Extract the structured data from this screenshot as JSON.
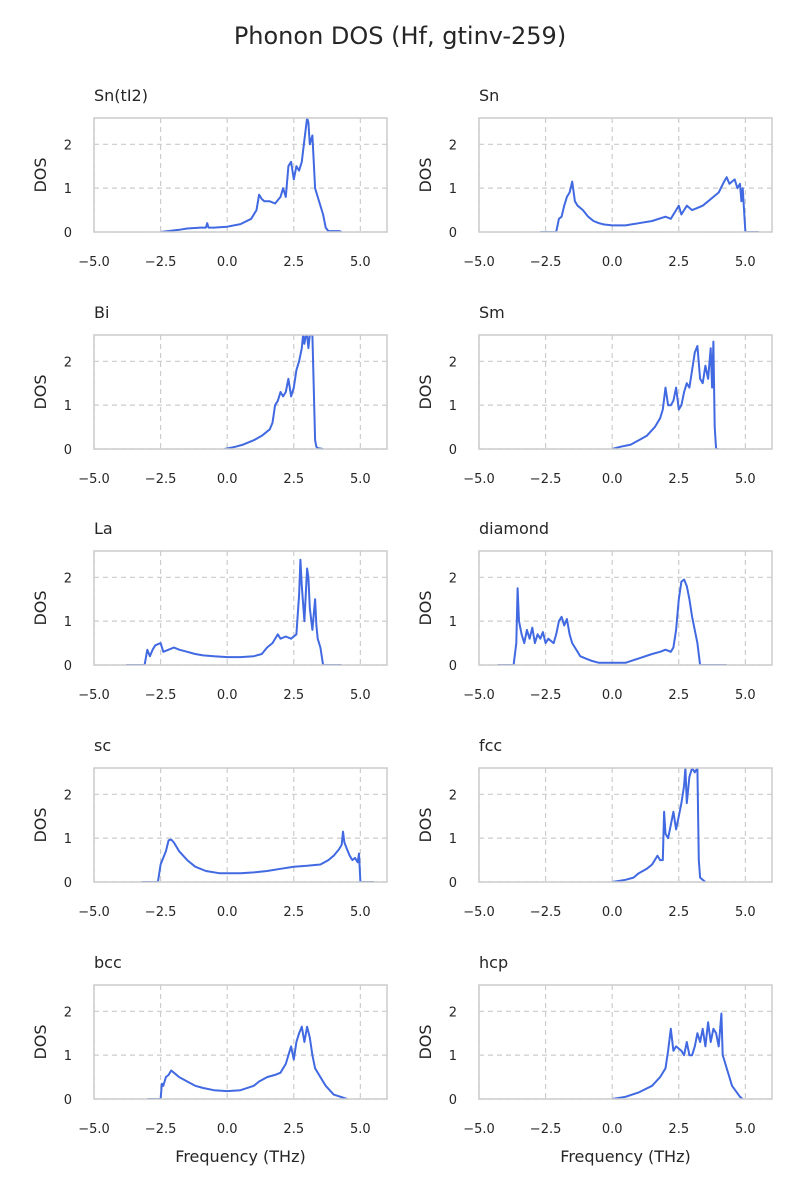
{
  "figure": {
    "title": "Phonon DOS (Hf, gtinv-259)"
  },
  "chart_data": [
    {
      "type": "line",
      "title": "Sn(tI2)",
      "xlabel": "",
      "ylabel": "DOS",
      "xlim": [
        -5,
        6
      ],
      "ylim": [
        0,
        2.6
      ],
      "xticks": [
        "−5.0",
        "−2.5",
        "0.0",
        "2.5",
        "5.0"
      ],
      "yticks": [
        "0",
        "1",
        "2"
      ],
      "grid": true,
      "series": [
        {
          "x": [
            -2.5,
            -1.8,
            -1.5,
            -1.0,
            -0.8,
            -0.75,
            -0.7,
            -0.5,
            0,
            0.5,
            0.9,
            1.1,
            1.2,
            1.3,
            1.4,
            1.6,
            1.8,
            2.0,
            2.1,
            2.2,
            2.3,
            2.4,
            2.5,
            2.6,
            2.7,
            2.8,
            2.9,
            3.0,
            3.05,
            3.1,
            3.2,
            3.3,
            3.4,
            3.5,
            3.6,
            3.7,
            3.8,
            4.2,
            4.3
          ],
          "y": [
            0,
            0.05,
            0.08,
            0.1,
            0.1,
            0.2,
            0.1,
            0.1,
            0.12,
            0.18,
            0.3,
            0.5,
            0.85,
            0.75,
            0.7,
            0.7,
            0.65,
            0.8,
            1.0,
            0.8,
            1.5,
            1.6,
            1.2,
            1.5,
            1.4,
            1.6,
            2.1,
            2.6,
            2.5,
            2.0,
            2.2,
            1.0,
            0.8,
            0.6,
            0.4,
            0.1,
            0.02,
            0.02,
            0
          ]
        }
      ]
    },
    {
      "type": "line",
      "title": "Sn",
      "xlabel": "",
      "ylabel": "DOS",
      "xlim": [
        -5,
        6
      ],
      "ylim": [
        0,
        2.6
      ],
      "xticks": [
        "−5.0",
        "−2.5",
        "0.0",
        "2.5",
        "5.0"
      ],
      "yticks": [
        "0",
        "1",
        "2"
      ],
      "grid": true,
      "series": [
        {
          "x": [
            -2.7,
            -2.1,
            -2.0,
            -1.9,
            -1.8,
            -1.7,
            -1.6,
            -1.5,
            -1.4,
            -1.3,
            -1.1,
            -0.9,
            -0.7,
            -0.5,
            -0.3,
            0,
            0.5,
            1.0,
            1.5,
            2.0,
            2.2,
            2.4,
            2.5,
            2.6,
            2.7,
            2.8,
            3.0,
            3.2,
            3.4,
            3.6,
            3.8,
            4.0,
            4.2,
            4.3,
            4.4,
            4.5,
            4.6,
            4.7,
            4.8,
            4.85,
            4.9,
            5.0,
            5.5
          ],
          "y": [
            0,
            0,
            0.3,
            0.35,
            0.6,
            0.8,
            0.9,
            1.15,
            0.7,
            0.6,
            0.5,
            0.35,
            0.25,
            0.2,
            0.17,
            0.15,
            0.15,
            0.2,
            0.25,
            0.35,
            0.3,
            0.5,
            0.6,
            0.4,
            0.5,
            0.6,
            0.5,
            0.55,
            0.6,
            0.7,
            0.8,
            0.9,
            1.15,
            1.25,
            1.1,
            1.15,
            1.2,
            1.0,
            1.1,
            0.7,
            1.0,
            0,
            0
          ]
        }
      ]
    },
    {
      "type": "line",
      "title": "Bi",
      "xlabel": "",
      "ylabel": "DOS",
      "xlim": [
        -5,
        6
      ],
      "ylim": [
        0,
        2.6
      ],
      "xticks": [
        "−5.0",
        "−2.5",
        "0.0",
        "2.5",
        "5.0"
      ],
      "yticks": [
        "0",
        "1",
        "2"
      ],
      "grid": true,
      "series": [
        {
          "x": [
            -0.1,
            0.3,
            0.6,
            1.0,
            1.3,
            1.6,
            1.7,
            1.8,
            1.9,
            2.0,
            2.1,
            2.2,
            2.3,
            2.4,
            2.5,
            2.6,
            2.7,
            2.8,
            2.85,
            2.9,
            2.95,
            3.0,
            3.05,
            3.1,
            3.2,
            3.3,
            3.35,
            3.4,
            3.6
          ],
          "y": [
            0,
            0.05,
            0.1,
            0.2,
            0.3,
            0.45,
            0.6,
            1.0,
            1.1,
            1.3,
            1.2,
            1.3,
            1.6,
            1.2,
            1.4,
            1.8,
            2.0,
            2.3,
            2.6,
            2.4,
            2.6,
            2.6,
            2.3,
            2.6,
            2.6,
            0.2,
            0.05,
            0.02,
            0
          ]
        }
      ]
    },
    {
      "type": "line",
      "title": "Sm",
      "xlabel": "",
      "ylabel": "DOS",
      "xlim": [
        -5,
        6
      ],
      "ylim": [
        0,
        2.6
      ],
      "xticks": [
        "−5.0",
        "−2.5",
        "0.0",
        "2.5",
        "5.0"
      ],
      "yticks": [
        "0",
        "1",
        "2"
      ],
      "grid": true,
      "series": [
        {
          "x": [
            0,
            0.3,
            0.7,
            1.0,
            1.3,
            1.6,
            1.8,
            1.9,
            2.0,
            2.1,
            2.2,
            2.3,
            2.4,
            2.5,
            2.6,
            2.7,
            2.8,
            2.9,
            3.0,
            3.1,
            3.2,
            3.3,
            3.4,
            3.5,
            3.6,
            3.7,
            3.75,
            3.8,
            3.85,
            3.9,
            4.0
          ],
          "y": [
            0,
            0.05,
            0.1,
            0.2,
            0.3,
            0.5,
            0.7,
            0.9,
            1.4,
            1.0,
            1.0,
            1.1,
            1.4,
            0.9,
            1.0,
            1.3,
            1.5,
            1.4,
            1.8,
            2.2,
            2.35,
            1.6,
            1.5,
            1.9,
            1.6,
            2.3,
            1.4,
            2.45,
            0.5,
            0,
            0
          ]
        }
      ]
    },
    {
      "type": "line",
      "title": "La",
      "xlabel": "",
      "ylabel": "DOS",
      "xlim": [
        -5,
        6
      ],
      "ylim": [
        0,
        2.6
      ],
      "xticks": [
        "−5.0",
        "−2.5",
        "0.0",
        "2.5",
        "5.0"
      ],
      "yticks": [
        "0",
        "1",
        "2"
      ],
      "grid": true,
      "series": [
        {
          "x": [
            -3.8,
            -3.1,
            -3.0,
            -2.9,
            -2.8,
            -2.7,
            -2.5,
            -2.4,
            -2.2,
            -2.0,
            -1.8,
            -1.5,
            -1.2,
            -0.9,
            -0.5,
            0,
            0.5,
            1.0,
            1.3,
            1.5,
            1.7,
            1.9,
            2.0,
            2.2,
            2.4,
            2.6,
            2.7,
            2.75,
            2.8,
            2.9,
            3.0,
            3.05,
            3.1,
            3.2,
            3.3,
            3.35,
            3.4,
            3.5,
            3.6,
            4.3
          ],
          "y": [
            0,
            0,
            0.35,
            0.2,
            0.35,
            0.45,
            0.5,
            0.3,
            0.35,
            0.4,
            0.35,
            0.3,
            0.25,
            0.22,
            0.2,
            0.18,
            0.18,
            0.2,
            0.25,
            0.4,
            0.5,
            0.7,
            0.6,
            0.65,
            0.6,
            0.7,
            1.6,
            2.4,
            1.8,
            1.0,
            2.2,
            2.0,
            1.3,
            0.8,
            1.5,
            0.9,
            0.6,
            0.4,
            0,
            0
          ]
        }
      ]
    },
    {
      "type": "line",
      "title": "diamond",
      "xlabel": "",
      "ylabel": "DOS",
      "xlim": [
        -5,
        6
      ],
      "ylim": [
        0,
        2.6
      ],
      "xticks": [
        "−5.0",
        "−2.5",
        "0.0",
        "2.5",
        "5.0"
      ],
      "yticks": [
        "0",
        "1",
        "2"
      ],
      "grid": true,
      "series": [
        {
          "x": [
            -4.3,
            -3.7,
            -3.6,
            -3.55,
            -3.5,
            -3.4,
            -3.3,
            -3.2,
            -3.1,
            -3.0,
            -2.9,
            -2.8,
            -2.7,
            -2.6,
            -2.5,
            -2.4,
            -2.2,
            -2.1,
            -2.0,
            -1.9,
            -1.8,
            -1.7,
            -1.6,
            -1.5,
            -1.4,
            -1.3,
            -1.2,
            -1.0,
            -0.8,
            -0.5,
            0,
            0.5,
            1.0,
            1.5,
            1.8,
            2.0,
            2.2,
            2.3,
            2.4,
            2.5,
            2.6,
            2.7,
            2.8,
            2.9,
            3.0,
            3.2,
            3.3,
            4.3
          ],
          "y": [
            0,
            0,
            0.5,
            1.75,
            1.0,
            0.7,
            0.5,
            0.8,
            0.6,
            0.85,
            0.5,
            0.7,
            0.6,
            0.75,
            0.5,
            0.6,
            0.5,
            0.7,
            1.0,
            1.1,
            0.9,
            1.05,
            0.7,
            0.5,
            0.4,
            0.3,
            0.2,
            0.15,
            0.1,
            0.05,
            0.05,
            0.05,
            0.15,
            0.25,
            0.3,
            0.35,
            0.3,
            0.4,
            0.8,
            1.5,
            1.9,
            1.95,
            1.8,
            1.5,
            1.1,
            0.5,
            0,
            0
          ]
        }
      ]
    },
    {
      "type": "line",
      "title": "sc",
      "xlabel": "",
      "ylabel": "DOS",
      "xlim": [
        -5,
        6
      ],
      "ylim": [
        0,
        2.6
      ],
      "xticks": [
        "−5.0",
        "−2.5",
        "0.0",
        "2.5",
        "5.0"
      ],
      "yticks": [
        "0",
        "1",
        "2"
      ],
      "grid": true,
      "series": [
        {
          "x": [
            -3.2,
            -2.6,
            -2.5,
            -2.3,
            -2.2,
            -2.1,
            -2.0,
            -1.8,
            -1.5,
            -1.2,
            -0.8,
            -0.3,
            0,
            0.5,
            1.0,
            1.5,
            2.0,
            2.5,
            3.0,
            3.5,
            3.8,
            4.0,
            4.2,
            4.3,
            4.35,
            4.4,
            4.5,
            4.6,
            4.7,
            4.8,
            4.9,
            4.95,
            5.0,
            5.5
          ],
          "y": [
            0,
            0,
            0.4,
            0.7,
            0.95,
            0.97,
            0.9,
            0.7,
            0.5,
            0.35,
            0.25,
            0.2,
            0.2,
            0.2,
            0.22,
            0.25,
            0.3,
            0.35,
            0.37,
            0.4,
            0.5,
            0.6,
            0.75,
            0.85,
            1.15,
            0.9,
            0.75,
            0.6,
            0.5,
            0.55,
            0.45,
            0.65,
            0,
            0
          ]
        }
      ]
    },
    {
      "type": "line",
      "title": "fcc",
      "xlabel": "",
      "ylabel": "DOS",
      "xlim": [
        -5,
        6
      ],
      "ylim": [
        0,
        2.6
      ],
      "xticks": [
        "−5.0",
        "−2.5",
        "0.0",
        "2.5",
        "5.0"
      ],
      "yticks": [
        "0",
        "1",
        "2"
      ],
      "grid": true,
      "series": [
        {
          "x": [
            0,
            0.5,
            0.8,
            1.0,
            1.3,
            1.5,
            1.7,
            1.8,
            1.9,
            1.95,
            2.0,
            2.1,
            2.2,
            2.3,
            2.4,
            2.5,
            2.6,
            2.7,
            2.75,
            2.8,
            2.9,
            3.0,
            3.1,
            3.2,
            3.25,
            3.3,
            3.5
          ],
          "y": [
            0,
            0.05,
            0.1,
            0.2,
            0.3,
            0.4,
            0.6,
            0.5,
            0.5,
            1.6,
            1.1,
            1.0,
            1.3,
            1.6,
            1.2,
            1.5,
            1.8,
            2.2,
            2.6,
            1.8,
            2.4,
            2.6,
            2.5,
            2.6,
            0.5,
            0.1,
            0
          ]
        }
      ]
    },
    {
      "type": "line",
      "title": "bcc",
      "xlabel": "",
      "ylabel": "DOS",
      "xlim": [
        -5,
        6
      ],
      "ylim": [
        0,
        2.6
      ],
      "xticks": [
        "−5.0",
        "−2.5",
        "0.0",
        "2.5",
        "5.0"
      ],
      "yticks": [
        "0",
        "1",
        "2"
      ],
      "grid": true,
      "series": [
        {
          "x": [
            -3.0,
            -2.5,
            -2.45,
            -2.4,
            -2.3,
            -2.2,
            -2.1,
            -2.0,
            -1.8,
            -1.5,
            -1.2,
            -0.9,
            -0.5,
            0,
            0.5,
            1.0,
            1.2,
            1.5,
            1.8,
            2.0,
            2.2,
            2.3,
            2.4,
            2.5,
            2.6,
            2.7,
            2.8,
            2.9,
            3.0,
            3.1,
            3.2,
            3.3,
            3.5,
            3.7,
            4.0,
            4.4,
            4.5
          ],
          "y": [
            0,
            0,
            0.35,
            0.3,
            0.5,
            0.55,
            0.65,
            0.6,
            0.5,
            0.4,
            0.3,
            0.25,
            0.2,
            0.18,
            0.2,
            0.3,
            0.4,
            0.5,
            0.55,
            0.6,
            0.8,
            1.0,
            1.2,
            0.9,
            1.3,
            1.5,
            1.65,
            1.3,
            1.65,
            1.4,
            1.0,
            0.7,
            0.5,
            0.3,
            0.1,
            0.02,
            0
          ]
        }
      ]
    },
    {
      "type": "line",
      "title": "hcp",
      "xlabel": "",
      "ylabel": "DOS",
      "xlim": [
        -5,
        6
      ],
      "ylim": [
        0,
        2.6
      ],
      "xticks": [
        "−5.0",
        "−2.5",
        "0.0",
        "2.5",
        "5.0"
      ],
      "yticks": [
        "0",
        "1",
        "2"
      ],
      "grid": true,
      "series": [
        {
          "x": [
            0,
            0.5,
            1.0,
            1.5,
            1.8,
            2.0,
            2.1,
            2.2,
            2.3,
            2.4,
            2.5,
            2.6,
            2.7,
            2.8,
            2.9,
            3.0,
            3.1,
            3.2,
            3.3,
            3.4,
            3.5,
            3.6,
            3.7,
            3.8,
            3.9,
            4.0,
            4.1,
            4.15,
            4.2,
            4.3,
            4.4,
            4.5,
            4.8,
            4.9
          ],
          "y": [
            0,
            0.05,
            0.15,
            0.3,
            0.5,
            0.7,
            1.1,
            1.6,
            1.1,
            1.2,
            1.15,
            1.1,
            1.0,
            1.3,
            1.0,
            1.0,
            1.2,
            1.5,
            1.3,
            1.6,
            1.2,
            1.75,
            1.3,
            1.6,
            1.5,
            1.2,
            1.95,
            1.0,
            0.9,
            0.7,
            0.5,
            0.3,
            0.05,
            0
          ]
        }
      ]
    }
  ],
  "shared_xlabel": "Frequency (THz)"
}
